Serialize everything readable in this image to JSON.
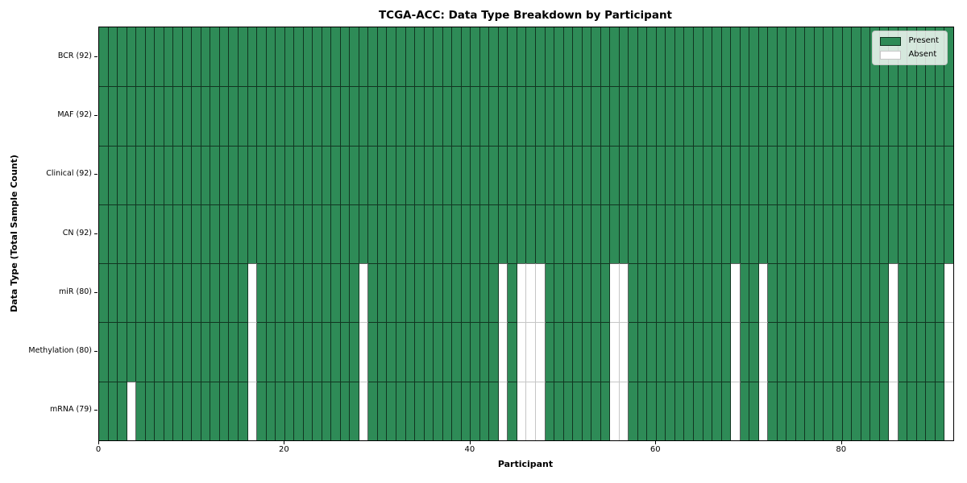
{
  "page": {
    "background": "#ffffff"
  },
  "chart_data": {
    "type": "heatmap",
    "title": "TCGA-ACC: Data Type Breakdown by Participant",
    "xlabel": "Participant",
    "ylabel": "Data Type (Total Sample Count)",
    "x_range": [
      0,
      92
    ],
    "n_participants": 92,
    "x_ticks": [
      {
        "label": "0",
        "value": 0
      },
      {
        "label": "20",
        "value": 20
      },
      {
        "label": "40",
        "value": 40
      },
      {
        "label": "60",
        "value": 60
      },
      {
        "label": "80",
        "value": 80
      }
    ],
    "rows": [
      {
        "label": "BCR (92)",
        "present_count": 92,
        "absent_participants": []
      },
      {
        "label": "MAF (92)",
        "present_count": 92,
        "absent_participants": []
      },
      {
        "label": "Clinical (92)",
        "present_count": 92,
        "absent_participants": []
      },
      {
        "label": "CN (92)",
        "present_count": 92,
        "absent_participants": []
      },
      {
        "label": "miR (80)",
        "present_count": 80,
        "absent_participants": [
          16,
          28,
          43,
          45,
          46,
          47,
          55,
          56,
          68,
          71,
          85,
          91
        ]
      },
      {
        "label": "Methylation (80)",
        "present_count": 80,
        "absent_participants": [
          16,
          28,
          43,
          45,
          46,
          47,
          55,
          56,
          68,
          71,
          85,
          91
        ]
      },
      {
        "label": "mRNA (79)",
        "present_count": 79,
        "absent_participants": [
          3,
          16,
          28,
          43,
          45,
          46,
          47,
          55,
          56,
          68,
          71,
          85,
          91
        ]
      }
    ],
    "legend": [
      {
        "label": "Present",
        "color": "#2E8B57"
      },
      {
        "label": "Absent",
        "color": "#FFFFFF"
      }
    ],
    "colors": {
      "present": "#2E8B57",
      "absent": "#FFFFFF",
      "edge_dark": "rgba(0,0,0,0.62)",
      "edge_light": "#c6c6c6",
      "spine": "#000000"
    },
    "legend_position": "upper-right",
    "grid": false
  }
}
